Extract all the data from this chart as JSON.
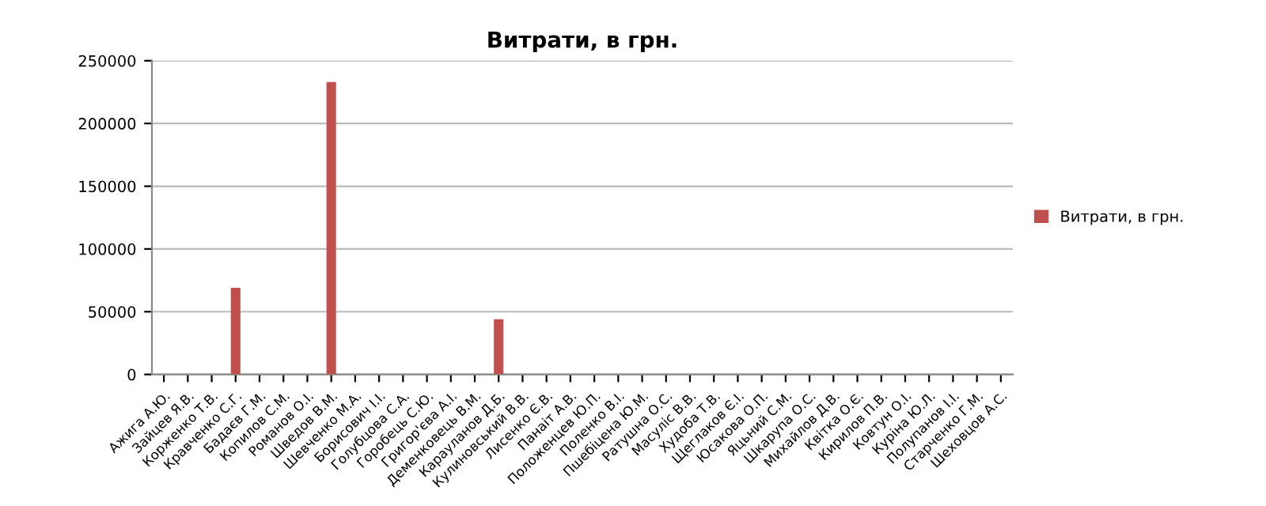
{
  "chart_data": {
    "type": "bar",
    "title": "Витрати, в грн.",
    "categories": [
      "Ажига А.Ю.",
      "Зайцев Я.В.",
      "Корженко Т.В.",
      "Кравченко С.Г.",
      "Бадаєв Г.М.",
      "Копилов С.М.",
      "Романов О.І.",
      "Шведов В.М.",
      "Шевченко М.А.",
      "Борисович І.І.",
      "Голубцова С.А.",
      "Горобець С.Ю.",
      "Григор'єва А.І.",
      "Деменковець В.М.",
      "Карауланов Д.Б.",
      "Кулиновський В.В.",
      "Лисенко Є.В.",
      "Панаіт А.В.",
      "Положенцев Ю.П.",
      "Поленко В.І.",
      "Пшебіцена Ю.М.",
      "Ратушна О.С.",
      "Масуліс В.В.",
      "Худоба Т.В.",
      "Щеглаков Є.І.",
      "Юсакова О.П.",
      "Яцьний С.М.",
      "Шкарупа О.С.",
      "Михайлов Д.В.",
      "Квітка О.Є.",
      "Кирилов П.В.",
      "Ковтун О.І.",
      "Куріна Ю.Л.",
      "Полупанов І.І.",
      "Старченко Г.М.",
      "Шеховцов А.С."
    ],
    "series": [
      {
        "name": "Витрати, в грн.",
        "color": "#c0504d",
        "values": [
          0,
          0,
          0,
          69000,
          0,
          0,
          0,
          233000,
          0,
          0,
          0,
          0,
          0,
          0,
          44000,
          0,
          0,
          0,
          0,
          0,
          0,
          0,
          0,
          0,
          0,
          0,
          0,
          0,
          0,
          0,
          0,
          0,
          0,
          0,
          0,
          0
        ]
      }
    ],
    "ylim": [
      0,
      250000
    ],
    "yticks": [
      0,
      50000,
      100000,
      150000,
      200000,
      250000
    ],
    "grid": "y",
    "legend": "right"
  }
}
